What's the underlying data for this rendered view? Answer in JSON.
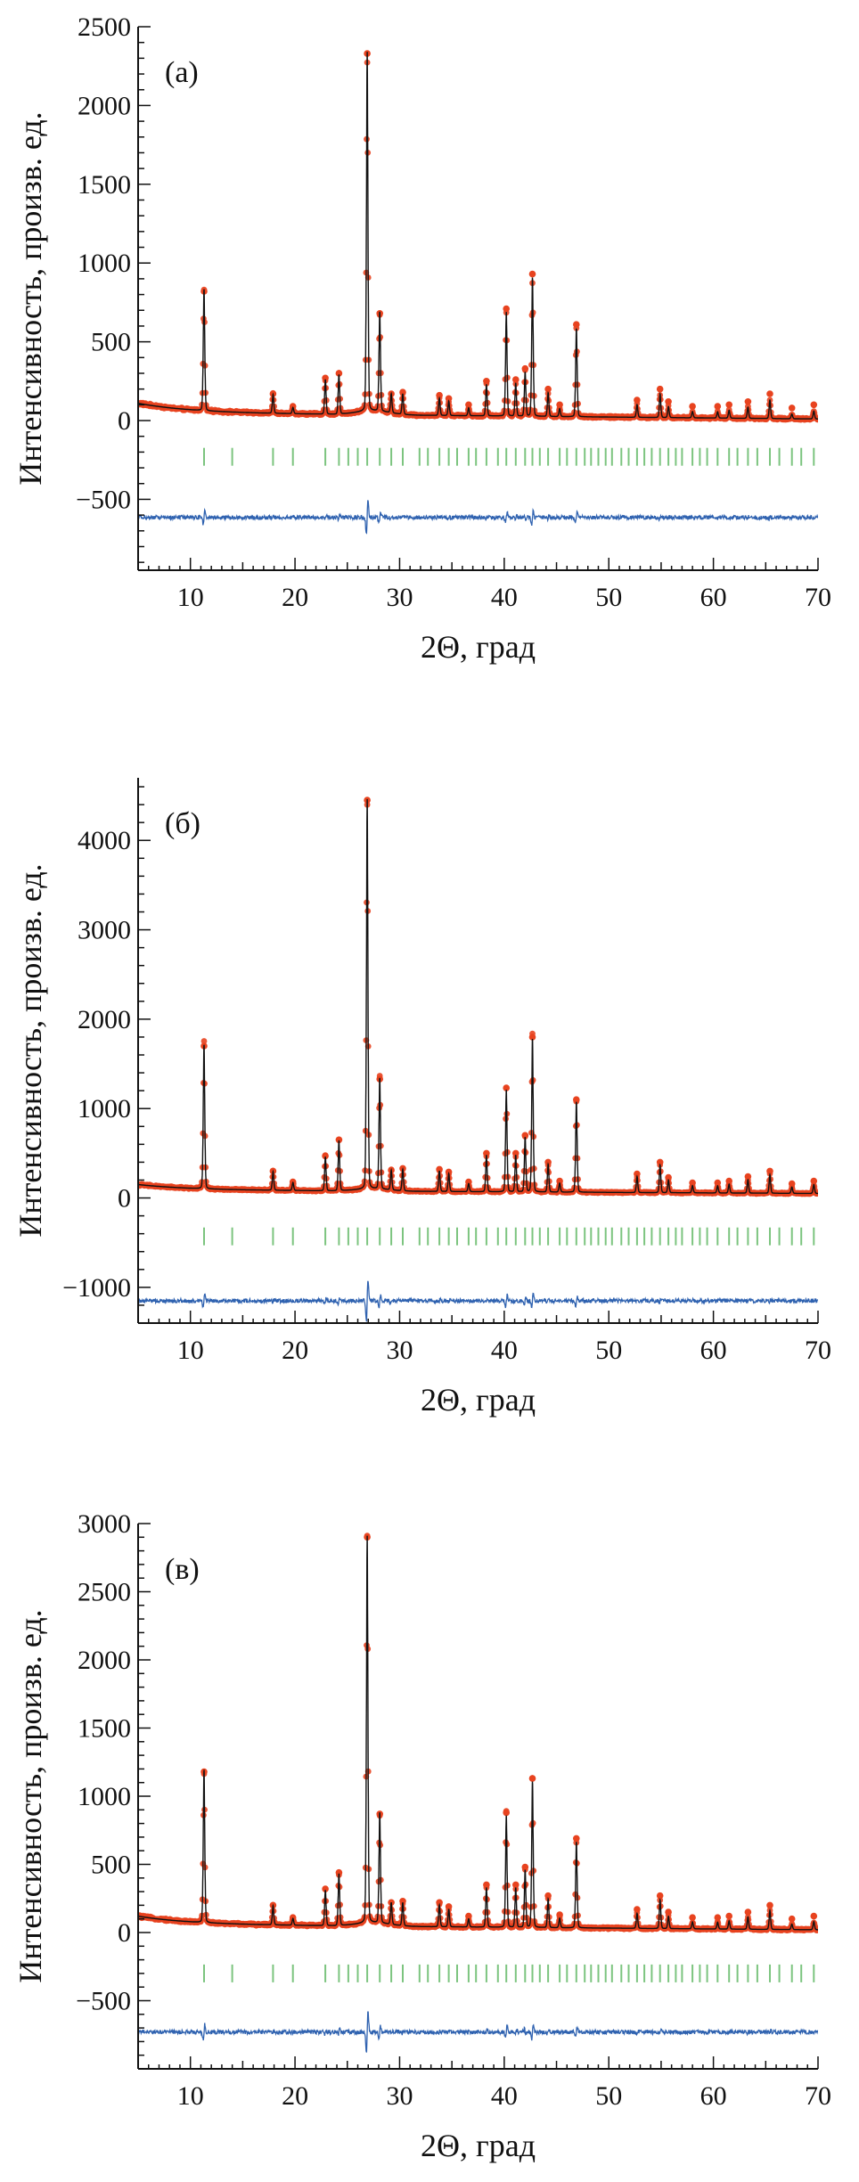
{
  "chart_data": [
    {
      "type": "line",
      "panel_label": "(а)",
      "xlabel": "2Θ, град",
      "ylabel": "Интенсивность, произв. ед.",
      "xlim": [
        5,
        70
      ],
      "ylim": [
        -950,
        2500
      ],
      "xticks": [
        10,
        20,
        30,
        40,
        50,
        60,
        70
      ],
      "yticks": [
        -500,
        0,
        500,
        1000,
        1500,
        2000,
        2500
      ],
      "background": 50,
      "difference_offset": -615,
      "reflection_marks_y": -230,
      "peaks": [
        {
          "x": 11.3,
          "y": 820
        },
        {
          "x": 17.9,
          "y": 170
        },
        {
          "x": 19.8,
          "y": 90
        },
        {
          "x": 22.9,
          "y": 270
        },
        {
          "x": 24.2,
          "y": 300
        },
        {
          "x": 26.9,
          "y": 2330
        },
        {
          "x": 28.1,
          "y": 680
        },
        {
          "x": 29.2,
          "y": 170
        },
        {
          "x": 30.3,
          "y": 180
        },
        {
          "x": 33.8,
          "y": 160
        },
        {
          "x": 34.7,
          "y": 140
        },
        {
          "x": 36.6,
          "y": 100
        },
        {
          "x": 38.3,
          "y": 250
        },
        {
          "x": 40.2,
          "y": 710
        },
        {
          "x": 41.1,
          "y": 260
        },
        {
          "x": 42.0,
          "y": 330
        },
        {
          "x": 42.7,
          "y": 930
        },
        {
          "x": 44.2,
          "y": 200
        },
        {
          "x": 45.3,
          "y": 100
        },
        {
          "x": 46.9,
          "y": 610
        },
        {
          "x": 52.7,
          "y": 130
        },
        {
          "x": 54.9,
          "y": 200
        },
        {
          "x": 55.7,
          "y": 120
        },
        {
          "x": 58.0,
          "y": 90
        },
        {
          "x": 60.4,
          "y": 90
        },
        {
          "x": 61.5,
          "y": 100
        },
        {
          "x": 63.3,
          "y": 120
        },
        {
          "x": 65.4,
          "y": 170
        },
        {
          "x": 67.5,
          "y": 80
        },
        {
          "x": 69.6,
          "y": 100
        }
      ],
      "reflection_positions": [
        11.3,
        14.0,
        17.9,
        19.8,
        22.9,
        24.2,
        25.1,
        26.0,
        26.9,
        28.1,
        29.2,
        30.3,
        31.9,
        32.7,
        33.8,
        34.7,
        35.5,
        36.6,
        37.3,
        38.3,
        39.4,
        40.2,
        41.1,
        42.0,
        42.7,
        43.4,
        44.2,
        45.3,
        46.0,
        46.9,
        47.7,
        48.3,
        49.0,
        49.7,
        50.3,
        51.2,
        51.9,
        52.7,
        53.4,
        54.1,
        54.9,
        55.7,
        56.4,
        57.0,
        58.0,
        58.7,
        59.4,
        60.4,
        61.5,
        62.3,
        63.3,
        64.2,
        65.4,
        66.3,
        67.5,
        68.4,
        69.6
      ]
    },
    {
      "type": "line",
      "panel_label": "(б)",
      "xlabel": "2Θ, град",
      "ylabel": "Интенсивность, произв. ед.",
      "xlim": [
        5,
        70
      ],
      "ylim": [
        -1400,
        4700
      ],
      "xticks": [
        10,
        20,
        30,
        40,
        50,
        60,
        70
      ],
      "yticks": [
        -1000,
        0,
        1000,
        2000,
        3000,
        4000
      ],
      "background": 90,
      "difference_offset": -1150,
      "reflection_marks_y": -430,
      "peaks": [
        {
          "x": 11.3,
          "y": 1700
        },
        {
          "x": 17.9,
          "y": 300
        },
        {
          "x": 19.8,
          "y": 180
        },
        {
          "x": 22.9,
          "y": 470
        },
        {
          "x": 24.2,
          "y": 650
        },
        {
          "x": 26.9,
          "y": 4450
        },
        {
          "x": 28.1,
          "y": 1330
        },
        {
          "x": 29.2,
          "y": 310
        },
        {
          "x": 30.3,
          "y": 330
        },
        {
          "x": 33.8,
          "y": 320
        },
        {
          "x": 34.7,
          "y": 290
        },
        {
          "x": 36.6,
          "y": 180
        },
        {
          "x": 38.3,
          "y": 500
        },
        {
          "x": 40.2,
          "y": 1230
        },
        {
          "x": 41.1,
          "y": 500
        },
        {
          "x": 42.0,
          "y": 700
        },
        {
          "x": 42.7,
          "y": 1800
        },
        {
          "x": 44.2,
          "y": 400
        },
        {
          "x": 45.3,
          "y": 190
        },
        {
          "x": 46.9,
          "y": 1100
        },
        {
          "x": 52.7,
          "y": 270
        },
        {
          "x": 54.9,
          "y": 400
        },
        {
          "x": 55.7,
          "y": 230
        },
        {
          "x": 58.0,
          "y": 170
        },
        {
          "x": 60.4,
          "y": 170
        },
        {
          "x": 61.5,
          "y": 190
        },
        {
          "x": 63.3,
          "y": 240
        },
        {
          "x": 65.4,
          "y": 300
        },
        {
          "x": 67.5,
          "y": 160
        },
        {
          "x": 69.6,
          "y": 190
        }
      ],
      "reflection_positions": [
        11.3,
        14.0,
        17.9,
        19.8,
        22.9,
        24.2,
        25.1,
        26.0,
        26.9,
        28.1,
        29.2,
        30.3,
        31.9,
        32.7,
        33.8,
        34.7,
        35.5,
        36.6,
        37.3,
        38.3,
        39.4,
        40.2,
        41.1,
        42.0,
        42.7,
        43.4,
        44.2,
        45.3,
        46.0,
        46.9,
        47.7,
        48.3,
        49.0,
        49.7,
        50.3,
        51.2,
        51.9,
        52.7,
        53.4,
        54.1,
        54.9,
        55.7,
        56.4,
        57.0,
        58.0,
        58.7,
        59.4,
        60.4,
        61.5,
        62.3,
        63.3,
        64.2,
        65.4,
        66.3,
        67.5,
        68.4,
        69.6
      ]
    },
    {
      "type": "line",
      "panel_label": "(в)",
      "xlabel": "2Θ, град",
      "ylabel": "Интенсивность, произв. ед.",
      "xlim": [
        5,
        70
      ],
      "ylim": [
        -1000,
        3000
      ],
      "xticks": [
        10,
        20,
        30,
        40,
        50,
        60,
        70
      ],
      "yticks": [
        -500,
        0,
        500,
        1000,
        1500,
        2000,
        2500,
        3000
      ],
      "background": 60,
      "difference_offset": -730,
      "reflection_marks_y": -300,
      "peaks": [
        {
          "x": 11.3,
          "y": 1180
        },
        {
          "x": 17.9,
          "y": 200
        },
        {
          "x": 19.8,
          "y": 110
        },
        {
          "x": 22.9,
          "y": 320
        },
        {
          "x": 24.2,
          "y": 440
        },
        {
          "x": 26.9,
          "y": 2900
        },
        {
          "x": 28.1,
          "y": 870
        },
        {
          "x": 29.2,
          "y": 220
        },
        {
          "x": 30.3,
          "y": 230
        },
        {
          "x": 33.8,
          "y": 220
        },
        {
          "x": 34.7,
          "y": 190
        },
        {
          "x": 36.6,
          "y": 120
        },
        {
          "x": 38.3,
          "y": 350
        },
        {
          "x": 40.2,
          "y": 880
        },
        {
          "x": 41.1,
          "y": 350
        },
        {
          "x": 42.0,
          "y": 480
        },
        {
          "x": 42.7,
          "y": 1130
        },
        {
          "x": 44.2,
          "y": 270
        },
        {
          "x": 45.3,
          "y": 130
        },
        {
          "x": 46.9,
          "y": 690
        },
        {
          "x": 52.7,
          "y": 170
        },
        {
          "x": 54.9,
          "y": 270
        },
        {
          "x": 55.7,
          "y": 150
        },
        {
          "x": 58.0,
          "y": 110
        },
        {
          "x": 60.4,
          "y": 110
        },
        {
          "x": 61.5,
          "y": 120
        },
        {
          "x": 63.3,
          "y": 150
        },
        {
          "x": 65.4,
          "y": 200
        },
        {
          "x": 67.5,
          "y": 100
        },
        {
          "x": 69.6,
          "y": 120
        }
      ],
      "reflection_positions": [
        11.3,
        14.0,
        17.9,
        19.8,
        22.9,
        24.2,
        25.1,
        26.0,
        26.9,
        28.1,
        29.2,
        30.3,
        31.9,
        32.7,
        33.8,
        34.7,
        35.5,
        36.6,
        37.3,
        38.3,
        39.4,
        40.2,
        41.1,
        42.0,
        42.7,
        43.4,
        44.2,
        45.3,
        46.0,
        46.9,
        47.7,
        48.3,
        49.0,
        49.7,
        50.3,
        51.2,
        51.9,
        52.7,
        53.4,
        54.1,
        54.9,
        55.7,
        56.4,
        57.0,
        58.0,
        58.7,
        59.4,
        60.4,
        61.5,
        62.3,
        63.3,
        64.2,
        65.4,
        66.3,
        67.5,
        68.4,
        69.6
      ]
    }
  ],
  "colors": {
    "observed": "#e8431f",
    "calculated": "#111111",
    "difference": "#2f62b0",
    "reflections": "#7cc47f",
    "axis": "#111111"
  }
}
